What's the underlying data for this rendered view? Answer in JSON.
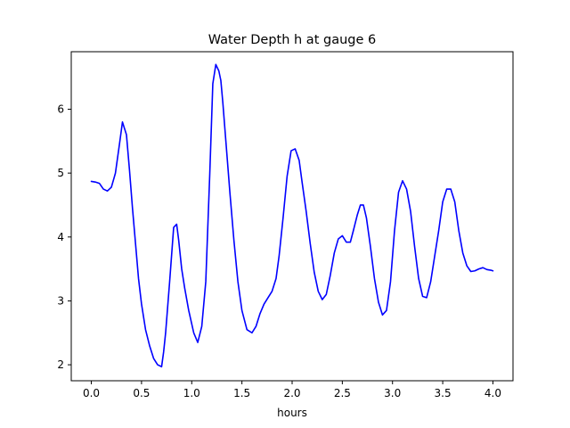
{
  "chart_data": {
    "type": "line",
    "title": "Water Depth h at gauge 6",
    "xlabel": "hours",
    "ylabel": "",
    "xlim": [
      -0.2,
      4.2
    ],
    "ylim": [
      1.75,
      6.9
    ],
    "xticks": [
      0.0,
      0.5,
      1.0,
      1.5,
      2.0,
      2.5,
      3.0,
      3.5,
      4.0
    ],
    "xtick_labels": [
      "0.0",
      "0.5",
      "1.0",
      "1.5",
      "2.0",
      "2.5",
      "3.0",
      "3.5",
      "4.0"
    ],
    "yticks": [
      2,
      3,
      4,
      5,
      6
    ],
    "ytick_labels": [
      "2",
      "3",
      "4",
      "5",
      "6"
    ],
    "grid": false,
    "colors": {
      "line": "#0000ff",
      "axes": "#000000",
      "background": "#ffffff"
    },
    "series": [
      {
        "x": [
          0.0,
          0.04,
          0.08,
          0.12,
          0.16,
          0.2,
          0.24,
          0.28,
          0.31,
          0.35,
          0.38,
          0.41,
          0.44,
          0.47,
          0.5,
          0.54,
          0.58,
          0.62,
          0.66,
          0.7,
          0.72,
          0.74,
          0.78,
          0.82,
          0.85,
          0.87,
          0.9,
          0.93,
          0.97,
          1.02,
          1.06,
          1.1,
          1.14,
          1.18,
          1.21,
          1.24,
          1.27,
          1.29,
          1.31,
          1.34,
          1.38,
          1.42,
          1.46,
          1.5,
          1.55,
          1.6,
          1.64,
          1.68,
          1.72,
          1.76,
          1.8,
          1.84,
          1.87,
          1.91,
          1.95,
          1.99,
          2.03,
          2.07,
          2.1,
          2.14,
          2.18,
          2.22,
          2.26,
          2.3,
          2.34,
          2.38,
          2.42,
          2.46,
          2.5,
          2.54,
          2.58,
          2.61,
          2.65,
          2.68,
          2.71,
          2.74,
          2.78,
          2.82,
          2.86,
          2.9,
          2.94,
          2.98,
          3.02,
          3.06,
          3.1,
          3.14,
          3.18,
          3.22,
          3.26,
          3.3,
          3.34,
          3.38,
          3.42,
          3.46,
          3.5,
          3.54,
          3.58,
          3.62,
          3.66,
          3.7,
          3.74,
          3.78,
          3.82,
          3.86,
          3.9,
          3.94,
          3.98,
          4.0
        ],
        "y": [
          4.87,
          4.86,
          4.84,
          4.75,
          4.72,
          4.78,
          5.0,
          5.45,
          5.8,
          5.6,
          5.05,
          4.45,
          3.9,
          3.35,
          2.95,
          2.55,
          2.3,
          2.1,
          2.0,
          1.97,
          2.2,
          2.5,
          3.3,
          4.15,
          4.2,
          3.95,
          3.5,
          3.2,
          2.85,
          2.5,
          2.35,
          2.6,
          3.3,
          5.0,
          6.4,
          6.7,
          6.6,
          6.45,
          6.1,
          5.5,
          4.7,
          3.95,
          3.3,
          2.85,
          2.55,
          2.5,
          2.6,
          2.8,
          2.95,
          3.05,
          3.15,
          3.35,
          3.7,
          4.3,
          4.95,
          5.35,
          5.38,
          5.2,
          4.85,
          4.4,
          3.9,
          3.45,
          3.15,
          3.02,
          3.1,
          3.4,
          3.75,
          3.97,
          4.02,
          3.92,
          3.92,
          4.1,
          4.35,
          4.5,
          4.5,
          4.3,
          3.85,
          3.35,
          2.98,
          2.78,
          2.85,
          3.3,
          4.1,
          4.7,
          4.88,
          4.75,
          4.4,
          3.85,
          3.35,
          3.07,
          3.05,
          3.3,
          3.7,
          4.1,
          4.55,
          4.75,
          4.75,
          4.55,
          4.1,
          3.75,
          3.55,
          3.46,
          3.47,
          3.5,
          3.52,
          3.49,
          3.48,
          3.47
        ]
      }
    ]
  }
}
